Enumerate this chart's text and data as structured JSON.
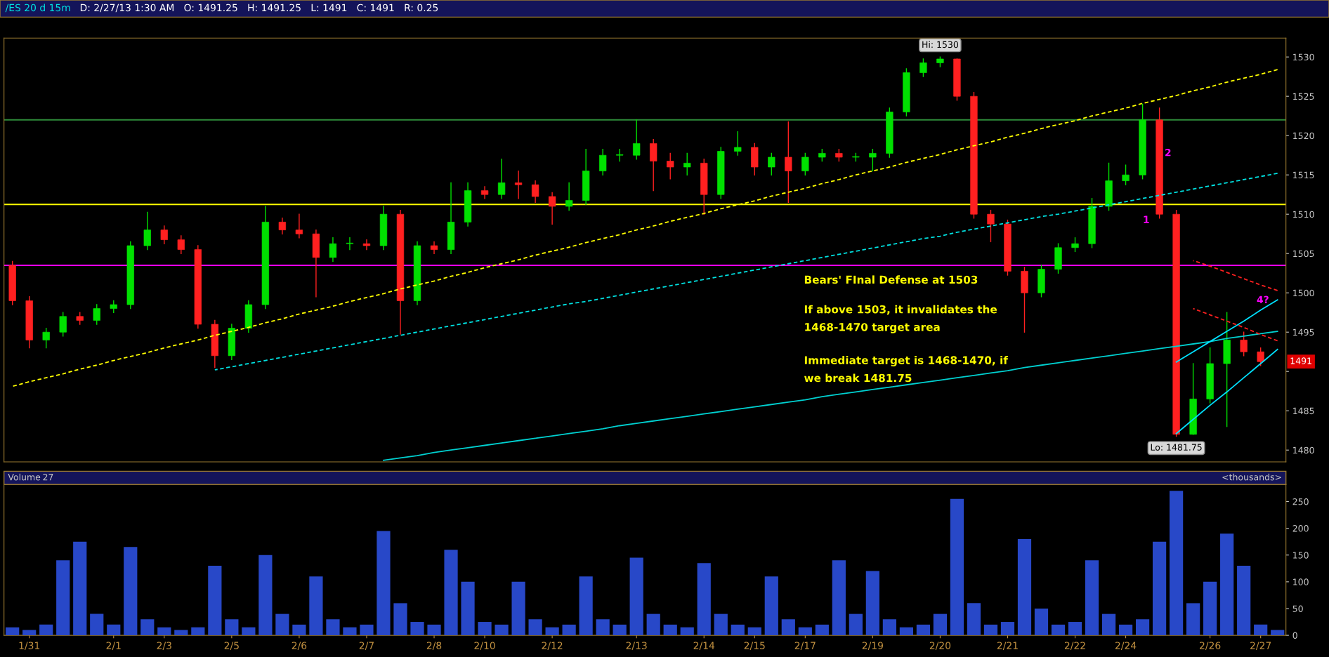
{
  "chart_data": [
    {
      "type": "candlestick",
      "title": "/ES 20 d 15m",
      "subtitle": "D: 2/27/13 1:30 AM   O: 1491.25   H: 1491.25   L: 1491   C: 1491   R: 0.25",
      "categories": [
        null,
        null,
        null,
        null,
        null,
        null,
        null,
        null,
        null,
        null,
        null,
        null,
        null,
        null,
        null,
        null,
        null,
        null,
        null,
        null,
        null,
        null,
        null,
        null,
        null,
        null,
        null,
        null,
        null,
        null,
        null,
        null,
        null,
        null,
        null,
        null,
        null,
        null,
        null,
        null,
        null,
        null,
        null,
        null,
        null,
        null,
        null,
        null,
        null,
        null,
        null,
        null,
        null,
        null,
        null,
        null,
        null,
        null,
        null,
        null,
        null,
        null,
        null,
        null,
        null,
        null,
        null,
        null,
        null,
        null,
        null,
        null,
        null,
        null,
        null,
        null
      ],
      "ohlc": [
        [
          1503.5,
          1504,
          1498.5,
          1499
        ],
        [
          1499,
          1499.5,
          1493,
          1494
        ],
        [
          1494,
          1495.5,
          1493,
          1495
        ],
        [
          1495,
          1497.5,
          1494.5,
          1497
        ],
        [
          1497,
          1497.5,
          1496,
          1496.5
        ],
        [
          1496.5,
          1498.5,
          1496,
          1498
        ],
        [
          1498,
          1499,
          1497.5,
          1498.5
        ],
        [
          1498.5,
          1506.5,
          1498,
          1506
        ],
        [
          1506,
          1510.25,
          1505.5,
          1508
        ],
        [
          1508,
          1508.5,
          1506.25,
          1506.75
        ],
        [
          1506.75,
          1507.25,
          1505,
          1505.5
        ],
        [
          1505.5,
          1506,
          1495.5,
          1496
        ],
        [
          1496,
          1496.5,
          1490.5,
          1492
        ],
        [
          1492,
          1496,
          1491.5,
          1495.5
        ],
        [
          1495.5,
          1499,
          1495,
          1498.5
        ],
        [
          1498.5,
          1511,
          1498,
          1509
        ],
        [
          1509,
          1509.5,
          1507.5,
          1508
        ],
        [
          1508,
          1510,
          1507,
          1507.5
        ],
        [
          1507.5,
          1508,
          1499.5,
          1504.5
        ],
        [
          1504.5,
          1507,
          1504,
          1506.25
        ],
        [
          1506.25,
          1507,
          1505.5,
          1506.25
        ],
        [
          1506.25,
          1506.75,
          1505.5,
          1506
        ],
        [
          1506,
          1511,
          1505.5,
          1510
        ],
        [
          1510,
          1510.5,
          1494.75,
          1499
        ],
        [
          1499,
          1506.5,
          1498.5,
          1506
        ],
        [
          1506,
          1506.5,
          1505,
          1505.5
        ],
        [
          1505.5,
          1514,
          1505,
          1509
        ],
        [
          1509,
          1514,
          1508.5,
          1513
        ],
        [
          1513,
          1513.5,
          1512,
          1512.5
        ],
        [
          1512.5,
          1517,
          1512,
          1514
        ],
        [
          1514,
          1515.5,
          1512,
          1513.75
        ],
        [
          1513.75,
          1514.25,
          1511.5,
          1512.25
        ],
        [
          1512.25,
          1512.75,
          1508.75,
          1511
        ],
        [
          1511,
          1514,
          1510.5,
          1511.75
        ],
        [
          1511.75,
          1518.25,
          1511.25,
          1515.5
        ],
        [
          1515.5,
          1518.25,
          1515,
          1517.5
        ],
        [
          1517.5,
          1518.25,
          1516.75,
          1517.5
        ],
        [
          1517.5,
          1522,
          1517,
          1519
        ],
        [
          1519,
          1519.5,
          1513,
          1516.75
        ],
        [
          1516.75,
          1517.75,
          1514.5,
          1516
        ],
        [
          1516,
          1517.75,
          1515,
          1516.5
        ],
        [
          1516.5,
          1517,
          1510,
          1512.5
        ],
        [
          1512.5,
          1518.5,
          1512,
          1518
        ],
        [
          1518,
          1520.5,
          1517.5,
          1518.5
        ],
        [
          1518.5,
          1519,
          1515,
          1516
        ],
        [
          1516,
          1517.75,
          1515,
          1517.25
        ],
        [
          1517.25,
          1521.75,
          1511.5,
          1515.5
        ],
        [
          1515.5,
          1517.75,
          1515,
          1517.25
        ],
        [
          1517.25,
          1518.25,
          1516.75,
          1517.75
        ],
        [
          1517.75,
          1518.25,
          1516.75,
          1517.25
        ],
        [
          1517.25,
          1517.75,
          1516.75,
          1517.25
        ],
        [
          1517.25,
          1518.25,
          1515.5,
          1517.75
        ],
        [
          1517.75,
          1523.5,
          1517.25,
          1523
        ],
        [
          1523,
          1528.5,
          1522.5,
          1528
        ],
        [
          1528,
          1529.75,
          1527.5,
          1529.25
        ],
        [
          1529.25,
          1530,
          1528.75,
          1529.75
        ],
        [
          1529.75,
          1529.75,
          1524.5,
          1525
        ],
        [
          1525,
          1525.5,
          1509.5,
          1510
        ],
        [
          1510,
          1510.5,
          1506.5,
          1508.75
        ],
        [
          1508.75,
          1509.25,
          1502.25,
          1502.75
        ],
        [
          1502.75,
          1503.25,
          1495,
          1500
        ],
        [
          1500,
          1503.5,
          1499.5,
          1503
        ],
        [
          1503,
          1506.25,
          1502.5,
          1505.75
        ],
        [
          1505.75,
          1507,
          1505.25,
          1506.25
        ],
        [
          1506.25,
          1512,
          1505.75,
          1511
        ],
        [
          1511,
          1516.5,
          1510.5,
          1514.25
        ],
        [
          1514.25,
          1516.25,
          1513.75,
          1515
        ],
        [
          1515,
          1524,
          1514.5,
          1522
        ],
        [
          1522,
          1523.5,
          1509.5,
          1510
        ],
        [
          1510,
          1510.5,
          1481.75,
          1482
        ],
        [
          1482,
          1491,
          1482,
          1486.5
        ],
        [
          1486.5,
          1493,
          1486,
          1491
        ],
        [
          1491,
          1497.5,
          1483,
          1494
        ],
        [
          1494,
          1495,
          1492,
          1492.5
        ],
        [
          1492.5,
          1493,
          1490.75,
          1491.25
        ],
        null
      ],
      "colors": [
        "#ff2020",
        "#ff2020",
        "#00e000",
        "#00e000",
        "#ff2020",
        "#00e000",
        "#00e000",
        "#00e000",
        "#00e000",
        "#ff2020",
        "#ff2020",
        "#ff2020",
        "#ff2020",
        "#00e000",
        "#00e000",
        "#00e000",
        "#ff2020",
        "#ff2020",
        "#ff2020",
        "#00e000",
        "#00e000",
        "#ff2020",
        "#00e000",
        "#ff2020",
        "#00e000",
        "#ff2020",
        "#00e000",
        "#00e000",
        "#ff2020",
        "#00e000",
        "#ff2020",
        "#ff2020",
        "#ff2020",
        "#00e000",
        "#00e000",
        "#00e000",
        "#00e000",
        "#00e000",
        "#ff2020",
        "#ff2020",
        "#00e000",
        "#ff2020",
        "#00e000",
        "#00e000",
        "#ff2020",
        "#00e000",
        "#ff2020",
        "#00e000",
        "#00e000",
        "#ff2020",
        "#00e000",
        "#00e000",
        "#00e000",
        "#00e000",
        "#00e000",
        "#00e000",
        "#ff2020",
        "#ff2020",
        "#ff2020",
        "#ff2020",
        "#ff2020",
        "#00e000",
        "#00e000",
        "#00e000",
        "#00e000",
        "#00e000",
        "#00e000",
        "#00e000",
        "#ff2020",
        "#ff2020",
        "#00e000",
        "#00e000",
        "#00e000",
        "#ff2020",
        "#ff2020",
        null
      ],
      "series": [
        {
          "type": "line",
          "values": [
            1488.1,
            1488.7,
            1489.2,
            1489.7,
            1490.3,
            1490.8,
            1491.4,
            1491.9,
            1492.4,
            1493.0,
            1493.5,
            1494.0,
            1494.6,
            1495.1,
            1495.6,
            1496.2,
            1496.7,
            1497.3,
            1497.8,
            1498.3,
            1498.9,
            1499.4,
            1499.9,
            1500.5,
            1501.0,
            1501.5,
            1502.1,
            1502.6,
            1503.2,
            1503.7,
            1504.2,
            1504.8,
            1505.3,
            1505.8,
            1506.4,
            1506.9,
            1507.4,
            1508.0,
            1508.5,
            1509.1,
            1509.6,
            1510.1,
            1510.7,
            1511.2,
            1511.7,
            1512.3,
            1512.8,
            1513.3,
            1513.9,
            1514.4,
            1515.0,
            1515.5,
            1516.0,
            1516.6,
            1517.1,
            1517.6,
            1518.2,
            1518.7,
            1519.2,
            1519.8,
            1520.3,
            1520.9,
            1521.4,
            1521.9,
            1522.5,
            1523.0,
            1523.5,
            1524.1,
            1524.6,
            1525.1,
            1525.7,
            1526.2,
            1526.8,
            1527.3,
            1527.8,
            1528.4
          ],
          "color": "#ffff00",
          "line_style": "dashed"
        },
        {
          "type": "line",
          "values": [
            null,
            null,
            null,
            null,
            null,
            null,
            null,
            null,
            null,
            null,
            null,
            null,
            1490.2,
            1490.6,
            1491.0,
            1491.4,
            1491.8,
            1492.2,
            1492.6,
            1493.0,
            1493.4,
            1493.8,
            1494.2,
            1494.6,
            1495.0,
            1495.4,
            1495.8,
            1496.2,
            1496.6,
            1497.0,
            1497.4,
            1497.8,
            1498.2,
            1498.6,
            1498.9,
            1499.3,
            1499.7,
            1500.1,
            1500.5,
            1500.9,
            1501.3,
            1501.7,
            1502.1,
            1502.5,
            1502.9,
            1503.3,
            1503.7,
            1504.1,
            1504.5,
            1504.9,
            1505.3,
            1505.7,
            1506.1,
            1506.5,
            1506.9,
            1507.2,
            1507.7,
            1508.1,
            1508.5,
            1508.9,
            1509.3,
            1509.7,
            1510.0,
            1510.4,
            1510.8,
            1511.2,
            1511.6,
            1512.0,
            1512.4,
            1512.8,
            1513.2,
            1513.6,
            1514.0,
            1514.4,
            1514.8,
            1515.2
          ],
          "color": "#00e0e0",
          "line_style": "dashed"
        },
        {
          "type": "line",
          "values": [
            null,
            null,
            null,
            null,
            null,
            null,
            null,
            null,
            null,
            null,
            null,
            null,
            null,
            null,
            null,
            null,
            null,
            null,
            null,
            null,
            null,
            null,
            1478.7,
            1479.0,
            1479.3,
            1479.7,
            1480.0,
            1480.3,
            1480.6,
            1480.9,
            1481.2,
            1481.5,
            1481.8,
            1482.1,
            1482.4,
            1482.7,
            1483.1,
            1483.4,
            1483.7,
            1484.0,
            1484.3,
            1484.6,
            1484.9,
            1485.2,
            1485.5,
            1485.8,
            1486.1,
            1486.4,
            1486.8,
            1487.1,
            1487.4,
            1487.7,
            1488.0,
            1488.3,
            1488.6,
            1488.9,
            1489.2,
            1489.5,
            1489.8,
            1490.1,
            1490.5,
            1490.8,
            1491.1,
            1491.4,
            1491.7,
            1492.0,
            1492.3,
            1492.6,
            1492.9,
            1493.2,
            1493.5,
            1493.8,
            1494.2,
            1494.5,
            1494.8,
            1495.1
          ],
          "color": "#00d0d0",
          "line_style": "solid"
        },
        {
          "type": "line",
          "values": [
            null,
            null,
            null,
            null,
            null,
            null,
            null,
            null,
            null,
            null,
            null,
            null,
            null,
            null,
            null,
            null,
            null,
            null,
            null,
            null,
            null,
            null,
            null,
            null,
            null,
            null,
            null,
            null,
            null,
            null,
            null,
            null,
            null,
            null,
            null,
            null,
            null,
            null,
            null,
            null,
            null,
            null,
            null,
            null,
            null,
            null,
            null,
            null,
            null,
            null,
            null,
            null,
            null,
            null,
            null,
            null,
            null,
            null,
            null,
            null,
            null,
            null,
            null,
            null,
            null,
            null,
            null,
            null,
            null,
            null,
            1504.1,
            1503.4,
            1502.6,
            1501.8,
            1501.0,
            1500.3
          ],
          "color": "#ff2020",
          "line_style": "dashed"
        },
        {
          "type": "line",
          "values": [
            null,
            null,
            null,
            null,
            null,
            null,
            null,
            null,
            null,
            null,
            null,
            null,
            null,
            null,
            null,
            null,
            null,
            null,
            null,
            null,
            null,
            null,
            null,
            null,
            null,
            null,
            null,
            null,
            null,
            null,
            null,
            null,
            null,
            null,
            null,
            null,
            null,
            null,
            null,
            null,
            null,
            null,
            null,
            null,
            null,
            null,
            null,
            null,
            null,
            null,
            null,
            null,
            null,
            null,
            null,
            null,
            null,
            null,
            null,
            null,
            null,
            null,
            null,
            null,
            null,
            null,
            null,
            null,
            null,
            null,
            1498.0,
            1497.2,
            1496.4,
            1495.6,
            1494.7,
            1493.9
          ],
          "color": "#ff2020",
          "line_style": "dashed"
        },
        {
          "type": "line",
          "values": [
            null,
            null,
            null,
            null,
            null,
            null,
            null,
            null,
            null,
            null,
            null,
            null,
            null,
            null,
            null,
            null,
            null,
            null,
            null,
            null,
            null,
            null,
            null,
            null,
            null,
            null,
            null,
            null,
            null,
            null,
            null,
            null,
            null,
            null,
            null,
            null,
            null,
            null,
            null,
            null,
            null,
            null,
            null,
            null,
            null,
            null,
            null,
            null,
            null,
            null,
            null,
            null,
            null,
            null,
            null,
            null,
            null,
            null,
            null,
            null,
            null,
            null,
            null,
            null,
            null,
            null,
            null,
            null,
            null,
            1482.1,
            1483.9,
            1485.7,
            1487.4,
            1489.2,
            1491.0,
            1492.8
          ],
          "color": "#00e0ff",
          "line_style": "solid"
        },
        {
          "type": "line",
          "values": [
            null,
            null,
            null,
            null,
            null,
            null,
            null,
            null,
            null,
            null,
            null,
            null,
            null,
            null,
            null,
            null,
            null,
            null,
            null,
            null,
            null,
            null,
            null,
            null,
            null,
            null,
            null,
            null,
            null,
            null,
            null,
            null,
            null,
            null,
            null,
            null,
            null,
            null,
            null,
            null,
            null,
            null,
            null,
            null,
            null,
            null,
            null,
            null,
            null,
            null,
            null,
            null,
            null,
            null,
            null,
            null,
            null,
            null,
            null,
            null,
            null,
            null,
            null,
            null,
            null,
            null,
            null,
            null,
            null,
            1491.2,
            1492.5,
            1493.8,
            1495.1,
            1496.4,
            1497.8,
            1499.1
          ],
          "color": "#00e0ff",
          "line_style": "solid"
        }
      ],
      "ref_lines": [
        {
          "axis": "y",
          "value": 1522,
          "color": "#2e8b3a"
        },
        {
          "axis": "y",
          "value": 1511.25,
          "color": "#ffff00"
        },
        {
          "axis": "y",
          "value": 1503.5,
          "color": "#ff00ff"
        }
      ],
      "annotations": [
        "Bears' FInal Defense at 1503",
        "If above 1503, it invalidates the\n1468-1470 target area",
        "Immediate target is 1468-1470, if\nwe break 1481.75",
        "Hi: 1530",
        "Lo: 1481.75",
        "1",
        "2",
        "4?",
        "1491"
      ],
      "ylim": [
        1478.5,
        1532.4
      ],
      "yticks": [
        1480,
        1485,
        {
          "value": 1490,
          "label": null
        },
        1495,
        1500,
        1505,
        1510,
        1515,
        1520,
        1525,
        1530
      ],
      "tick_labels": "y"
    },
    {
      "type": "bar",
      "title": "Volume",
      "annotations": [
        "27",
        "<thousands>"
      ],
      "color": "#2848c8",
      "categories": [
        null,
        "1/31",
        null,
        null,
        null,
        null,
        "2/1",
        null,
        null,
        "2/3",
        null,
        null,
        null,
        "2/5",
        null,
        null,
        null,
        "2/6",
        null,
        null,
        null,
        "2/7",
        null,
        null,
        null,
        "2/8",
        null,
        null,
        "2/10",
        null,
        null,
        null,
        "2/12",
        null,
        null,
        null,
        null,
        "2/13",
        null,
        null,
        null,
        "2/14",
        null,
        null,
        "2/15",
        null,
        null,
        "2/17",
        null,
        null,
        null,
        "2/19",
        null,
        null,
        null,
        "2/20",
        null,
        null,
        null,
        "2/21",
        null,
        null,
        null,
        "2/22",
        null,
        null,
        "2/24",
        null,
        null,
        null,
        null,
        "2/26",
        null,
        null,
        "2/27",
        null
      ],
      "values": [
        15,
        10,
        20,
        140,
        175,
        40,
        20,
        165,
        30,
        15,
        10,
        15,
        130,
        30,
        15,
        150,
        40,
        20,
        110,
        30,
        15,
        20,
        195,
        60,
        25,
        20,
        160,
        100,
        25,
        20,
        100,
        30,
        15,
        20,
        110,
        30,
        20,
        145,
        40,
        20,
        15,
        135,
        40,
        20,
        15,
        110,
        30,
        15,
        20,
        140,
        40,
        120,
        30,
        15,
        20,
        40,
        255,
        60,
        20,
        25,
        180,
        50,
        20,
        25,
        140,
        40,
        20,
        30,
        175,
        270,
        60,
        100,
        190,
        130,
        20,
        10
      ],
      "ylim": [
        0,
        282
      ],
      "yticks": [
        0,
        50,
        100,
        150,
        200,
        250
      ]
    }
  ]
}
